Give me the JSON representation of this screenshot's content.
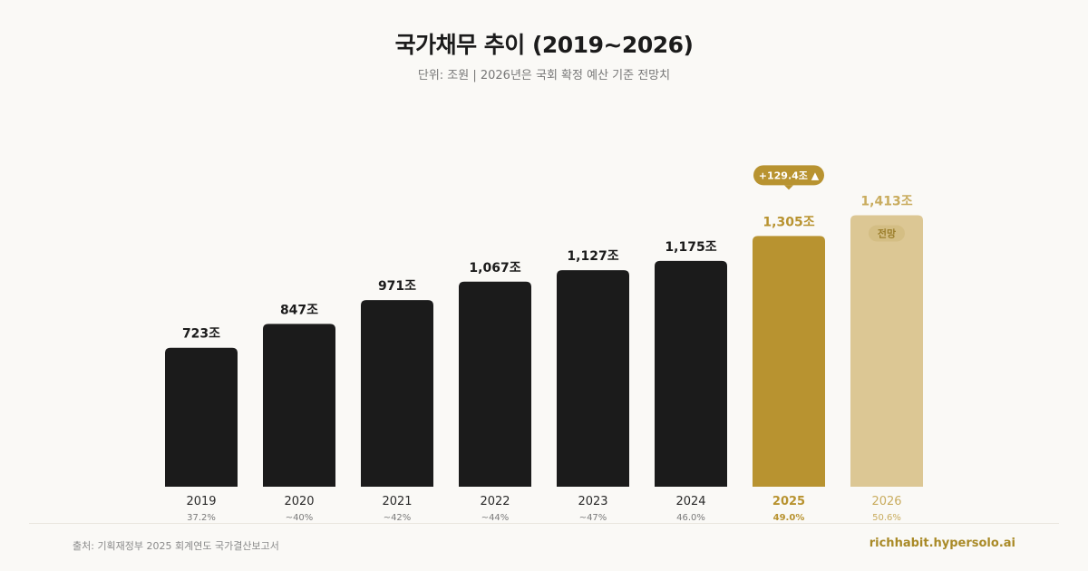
{
  "header": {
    "title": "국가채무 추이 (2019~2026)",
    "subtitle": "단위: 조원 | 2026년은 국회 확정 예산 기준 전망치"
  },
  "footer": {
    "source": "출처: 기획재정부 2025 회계연도 국가결산보고서",
    "site": "richhabit.hypersolo.ai"
  },
  "colors": {
    "bar": "#1b1b1b",
    "highlight": "#b89330",
    "forecast": "#dcc794",
    "forecast_text": "#c9ac5e",
    "ratio_text": "#7a7a7a"
  },
  "chart_data": {
    "type": "bar",
    "categories": [
      "2019",
      "2020",
      "2021",
      "2022",
      "2023",
      "2024",
      "2025",
      "2026"
    ],
    "values": [
      723,
      847,
      971,
      1067,
      1127,
      1175,
      1305,
      1413
    ],
    "value_labels": [
      "723조",
      "847조",
      "971조",
      "1,067조",
      "1,127조",
      "1,175조",
      "1,305조",
      "1,413조"
    ],
    "ratio_labels": [
      "37.2%",
      "~40%",
      "~42%",
      "~44%",
      "~47%",
      "46.0%",
      "49.0%",
      "50.6%"
    ],
    "highlight_index": 6,
    "forecast_index": 7,
    "annotations": [
      {
        "index": 6,
        "text": "+129.4조 ▲"
      },
      {
        "index": 7,
        "text": "전망"
      }
    ],
    "ylim": [
      0,
      1500
    ],
    "grid": false,
    "legend": "none"
  }
}
